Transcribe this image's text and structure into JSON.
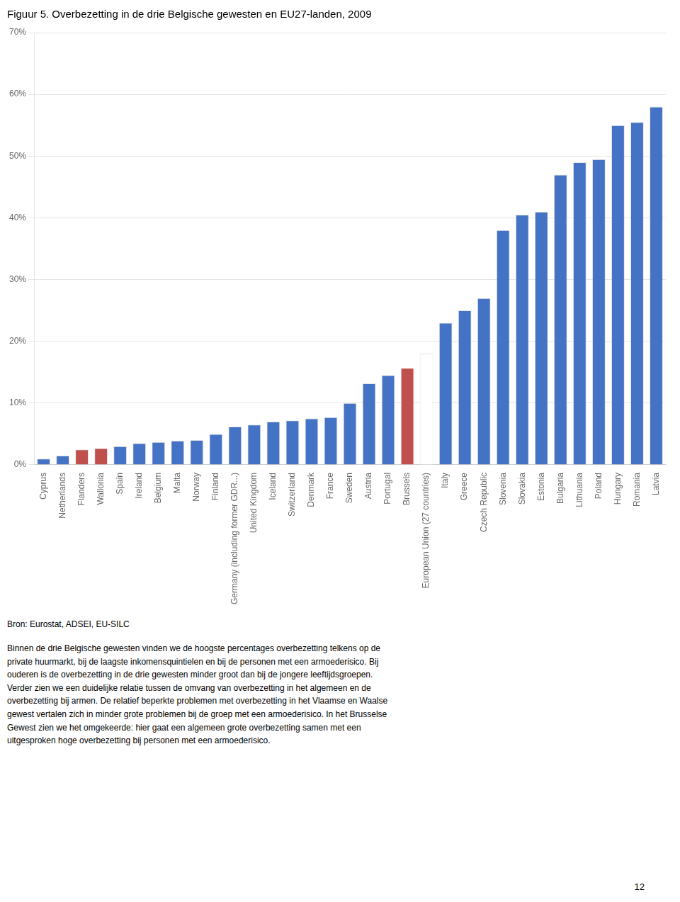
{
  "chart_data": {
    "type": "bar",
    "title": "Figuur 5. Overbezetting in de drie Belgische gewesten en EU27-landen, 2009",
    "categories": [
      "Cyprus",
      "Netherlands",
      "Flanders",
      "Wallonia",
      "Spain",
      "Ireland",
      "Belgium",
      "Malta",
      "Norway",
      "Finland",
      "Germany (including former GDR...)",
      "United Kingdom",
      "Iceland",
      "Switzerland",
      "Denmark",
      "France",
      "Sweden",
      "Austria",
      "Portugal",
      "Brussels",
      "European Union (27 countries)",
      "Italy",
      "Greece",
      "Czech Republic",
      "Slovenia",
      "Slovakia",
      "Estonia",
      "Bulgaria",
      "Lithuania",
      "Poland",
      "Hungary",
      "Romania",
      "Latvia"
    ],
    "values": [
      1.0,
      1.5,
      2.5,
      2.7,
      3.0,
      3.5,
      3.7,
      3.9,
      4.0,
      5.0,
      6.2,
      6.5,
      7.0,
      7.2,
      7.5,
      7.7,
      10.0,
      13.2,
      14.5,
      15.7,
      18.0,
      23.0,
      25.0,
      27.0,
      38.0,
      40.5,
      41.0,
      47.0,
      49.0,
      49.5,
      55.0,
      55.5,
      58.0
    ],
    "colors": [
      "#4472C4",
      "#4472C4",
      "#C0504D",
      "#C0504D",
      "#4472C4",
      "#4472C4",
      "#4472C4",
      "#4472C4",
      "#4472C4",
      "#4472C4",
      "#4472C4",
      "#4472C4",
      "#4472C4",
      "#4472C4",
      "#4472C4",
      "#4472C4",
      "#4472C4",
      "#4472C4",
      "#4472C4",
      "#C0504D",
      "#FFFFFF",
      "#4472C4",
      "#4472C4",
      "#4472C4",
      "#4472C4",
      "#4472C4",
      "#4472C4",
      "#4472C4",
      "#4472C4",
      "#4472C4",
      "#4472C4",
      "#4472C4",
      "#4472C4"
    ],
    "ylim": [
      0,
      70
    ],
    "yticks": [
      {
        "value": 0,
        "label": "0%"
      },
      {
        "value": 10,
        "label": "10%"
      },
      {
        "value": 20,
        "label": "20%"
      },
      {
        "value": 30,
        "label": "30%"
      },
      {
        "value": 40,
        "label": "40%"
      },
      {
        "value": 50,
        "label": "50%"
      },
      {
        "value": 60,
        "label": "60%"
      },
      {
        "value": 70,
        "label": "70%"
      }
    ],
    "grid": true,
    "annotations": [
      "Bron: Eurostat, ADSEI, EU-SILC",
      "Binnen de drie Belgische gewesten vinden we de hoogste percentages overbezetting telkens op de\nprivate huurmarkt, bij de laagste inkomensquintielen en bij de personen met een armoederisico. Bij\nouderen is de overbezetting in de drie gewesten minder groot dan bij de jongere leeftijdsgroepen.\nVerder zien we een duidelijke relatie tussen de omvang van overbezetting in het algemeen en de\noverbezetting bij armen. De relatief beperkte problemen met overbezetting in het Vlaamse en Waalse\ngewest vertalen zich in minder grote problemen bij de groep met een armoederisico. In het Brusselse\nGewest zien we het omgekeerde: hier gaat een algemeen grote overbezetting samen met een\nuitgesproken hoge overbezetting bij personen met een armoederisico.",
      "12"
    ]
  }
}
